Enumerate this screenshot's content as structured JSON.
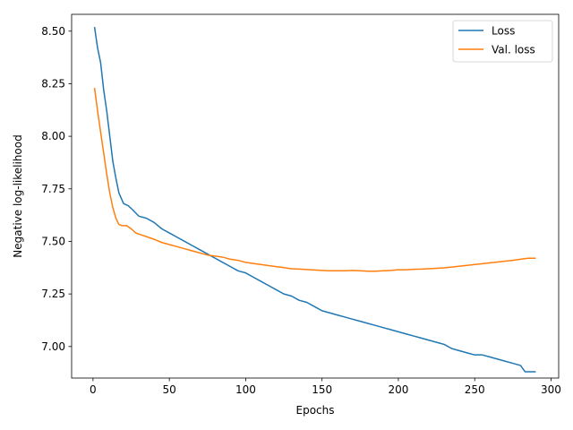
{
  "chart_data": {
    "type": "line",
    "title": "",
    "xlabel": "Epochs",
    "ylabel": "Negative log-likelihood",
    "xlim": [
      -14,
      305
    ],
    "ylim": [
      6.85,
      8.58
    ],
    "xticks": [
      0,
      50,
      100,
      150,
      200,
      250,
      300
    ],
    "yticks": [
      7.0,
      7.25,
      7.5,
      7.75,
      8.0,
      8.25,
      8.5
    ],
    "ytick_labels": [
      "7.00",
      "7.25",
      "7.50",
      "7.75",
      "8.00",
      "8.25",
      "8.50"
    ],
    "grid": false,
    "legend_position": "top-right",
    "series": [
      {
        "name": "Loss",
        "color": "#1f77b4",
        "x": [
          1,
          3,
          5,
          7,
          9,
          11,
          13,
          15,
          17,
          20,
          23,
          26,
          30,
          35,
          40,
          45,
          50,
          55,
          60,
          65,
          70,
          75,
          80,
          85,
          90,
          95,
          100,
          105,
          110,
          115,
          120,
          125,
          130,
          135,
          140,
          145,
          150,
          155,
          160,
          165,
          170,
          175,
          180,
          185,
          190,
          195,
          200,
          205,
          210,
          215,
          220,
          225,
          230,
          235,
          240,
          245,
          250,
          255,
          260,
          265,
          270,
          275,
          280,
          283,
          286,
          290
        ],
        "y": [
          8.52,
          8.42,
          8.35,
          8.22,
          8.12,
          8.0,
          7.88,
          7.8,
          7.73,
          7.68,
          7.67,
          7.65,
          7.62,
          7.61,
          7.59,
          7.56,
          7.54,
          7.52,
          7.5,
          7.48,
          7.46,
          7.44,
          7.42,
          7.4,
          7.38,
          7.36,
          7.35,
          7.33,
          7.31,
          7.29,
          7.27,
          7.25,
          7.24,
          7.22,
          7.21,
          7.19,
          7.17,
          7.16,
          7.15,
          7.14,
          7.13,
          7.12,
          7.11,
          7.1,
          7.09,
          7.08,
          7.07,
          7.06,
          7.05,
          7.04,
          7.03,
          7.02,
          7.01,
          6.99,
          6.98,
          6.97,
          6.96,
          6.96,
          6.95,
          6.94,
          6.93,
          6.92,
          6.91,
          6.88,
          6.88,
          6.88
        ]
      },
      {
        "name": "Val. loss",
        "color": "#ff7f0e",
        "x": [
          1,
          3,
          5,
          7,
          9,
          11,
          13,
          15,
          17,
          19,
          22,
          25,
          28,
          32,
          36,
          40,
          45,
          50,
          55,
          60,
          65,
          70,
          75,
          80,
          85,
          90,
          95,
          100,
          105,
          110,
          115,
          120,
          125,
          130,
          135,
          140,
          145,
          150,
          155,
          160,
          165,
          170,
          175,
          180,
          185,
          190,
          195,
          200,
          205,
          210,
          215,
          220,
          225,
          230,
          235,
          240,
          245,
          250,
          255,
          260,
          265,
          270,
          275,
          280,
          285,
          290
        ],
        "y": [
          8.23,
          8.12,
          8.02,
          7.92,
          7.82,
          7.73,
          7.66,
          7.61,
          7.58,
          7.575,
          7.575,
          7.56,
          7.54,
          7.53,
          7.52,
          7.51,
          7.495,
          7.485,
          7.475,
          7.465,
          7.455,
          7.445,
          7.435,
          7.43,
          7.425,
          7.415,
          7.41,
          7.4,
          7.395,
          7.39,
          7.385,
          7.38,
          7.375,
          7.37,
          7.368,
          7.366,
          7.364,
          7.362,
          7.36,
          7.36,
          7.36,
          7.362,
          7.36,
          7.358,
          7.358,
          7.36,
          7.362,
          7.365,
          7.365,
          7.367,
          7.368,
          7.37,
          7.372,
          7.374,
          7.378,
          7.382,
          7.386,
          7.39,
          7.394,
          7.398,
          7.402,
          7.406,
          7.41,
          7.415,
          7.42,
          7.42
        ]
      }
    ]
  }
}
